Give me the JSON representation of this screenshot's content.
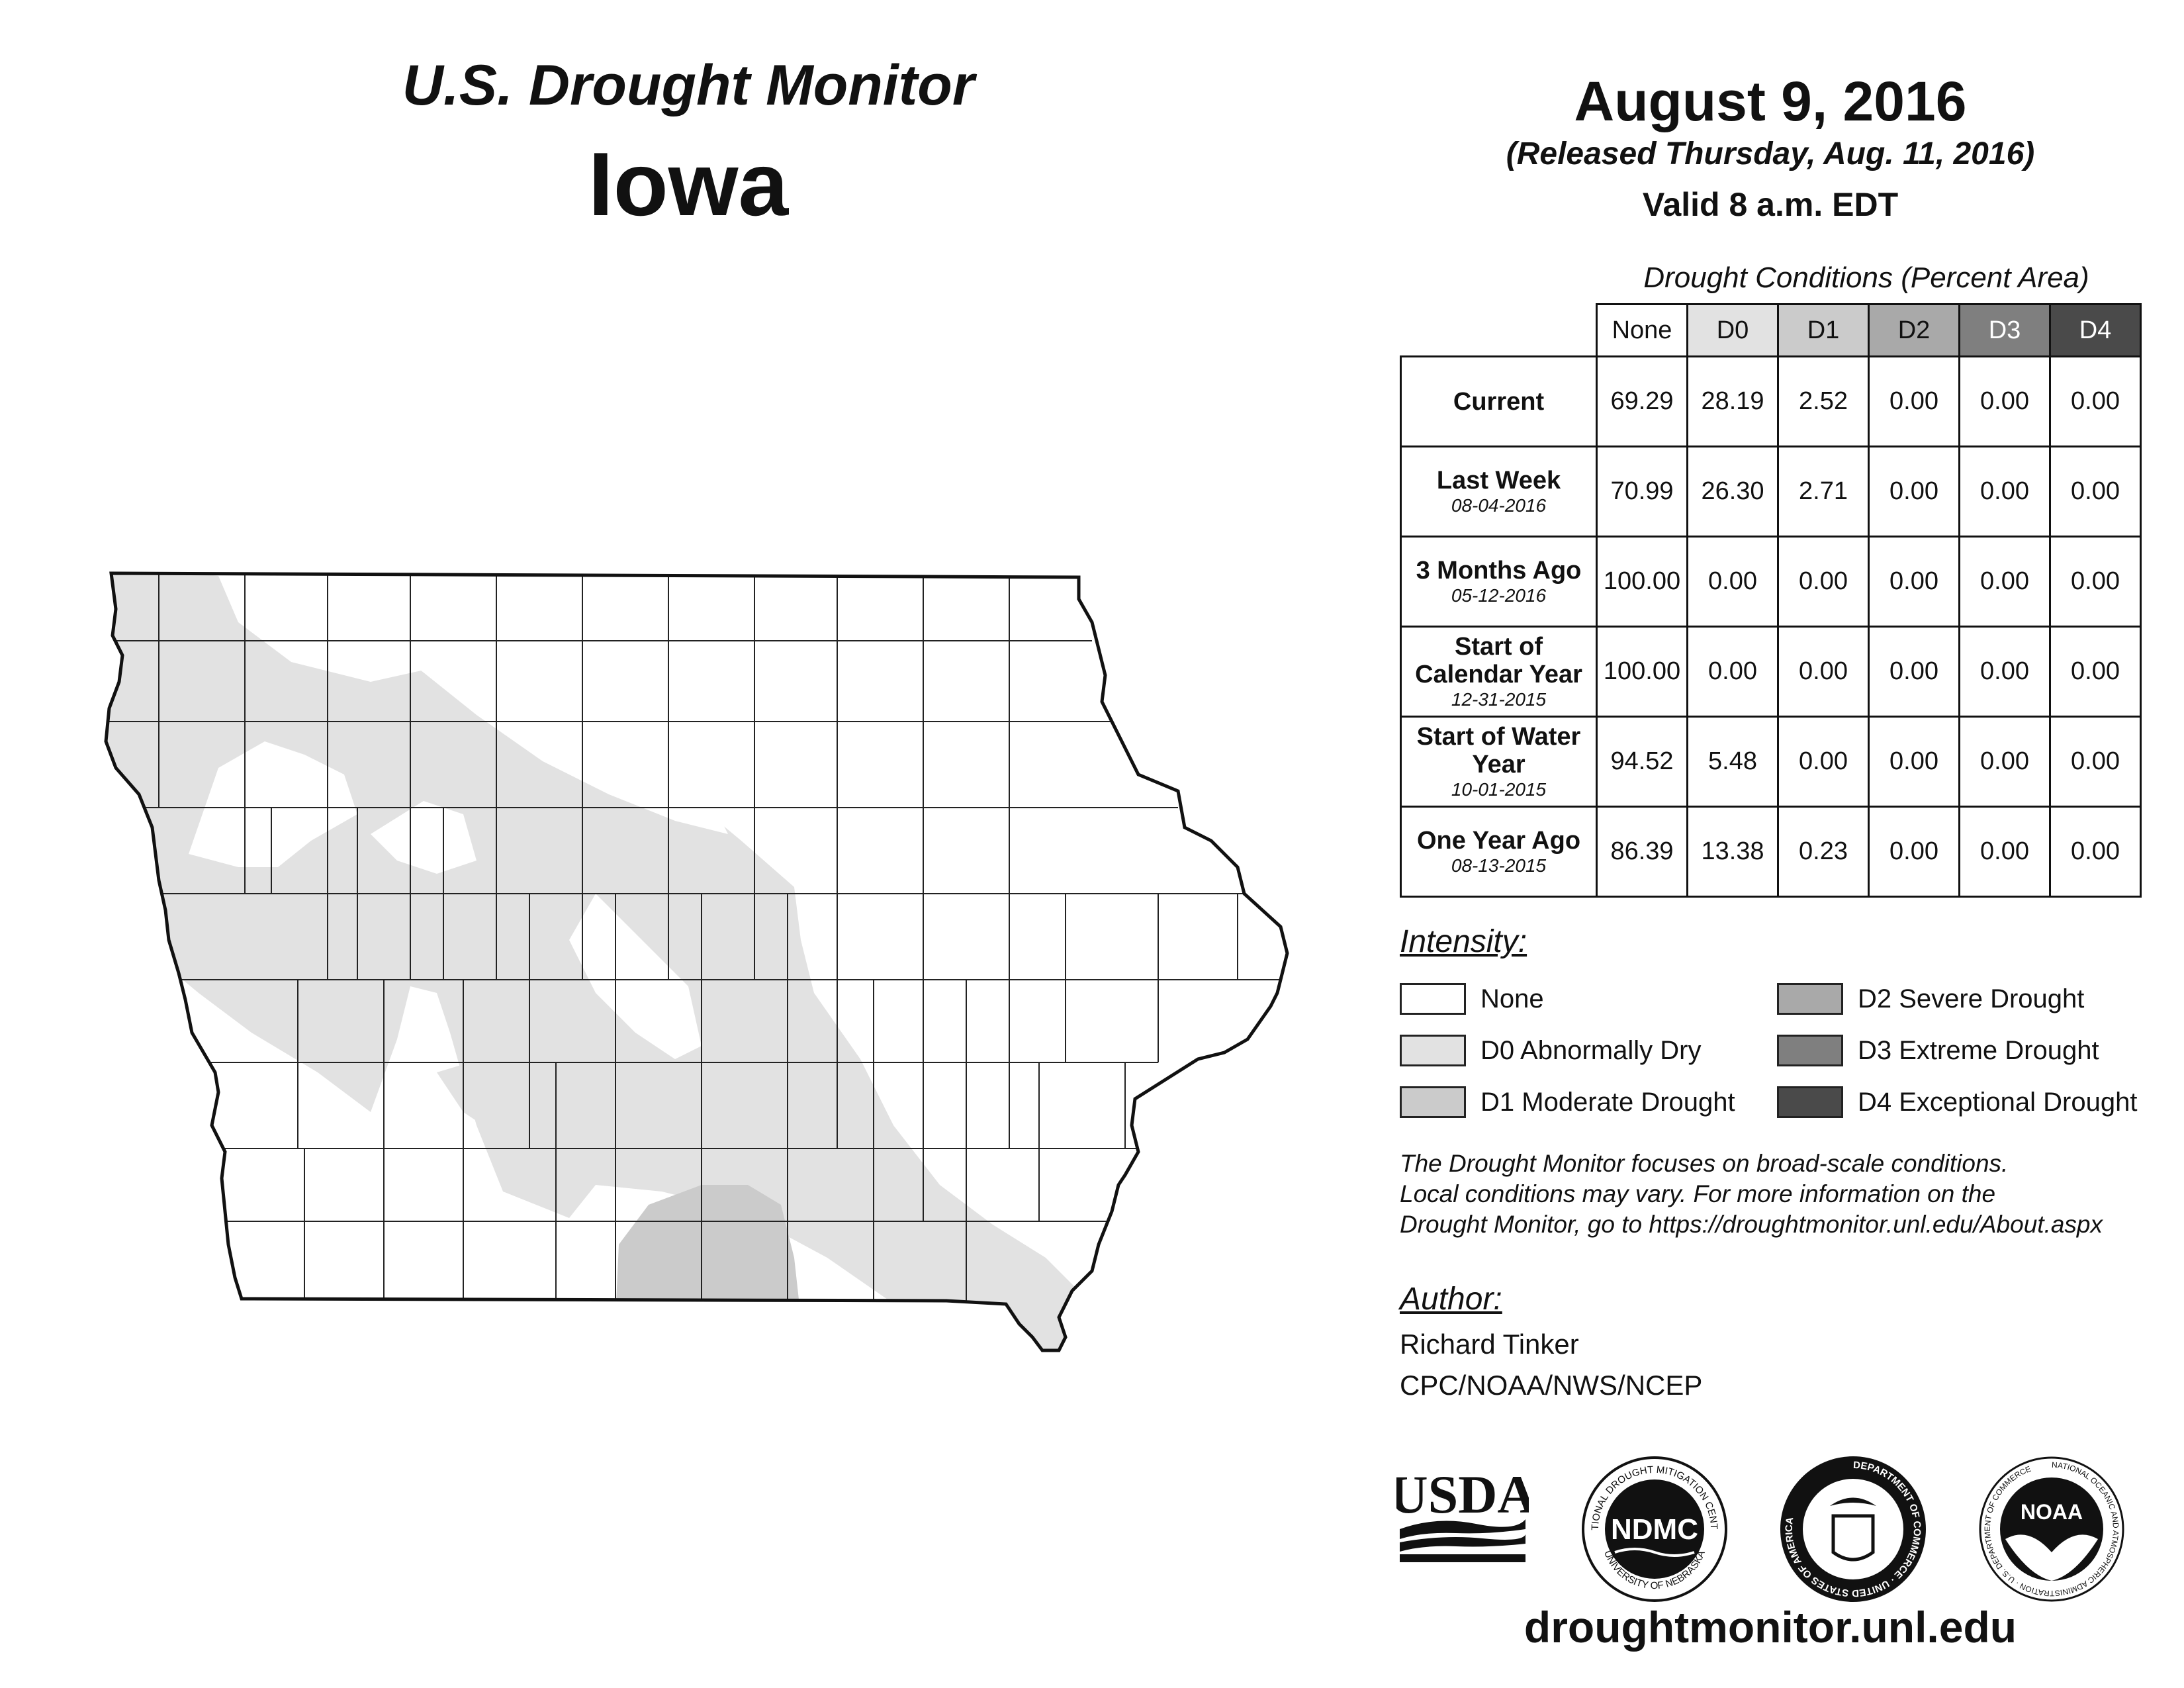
{
  "header": {
    "title": "U.S. Drought Monitor",
    "state": "Iowa",
    "date": "August 9, 2016",
    "released": "(Released Thursday, Aug. 11, 2016)",
    "valid": "Valid 8 a.m. EDT"
  },
  "table": {
    "caption": "Drought Conditions (Percent Area)",
    "columns": [
      "None",
      "D0",
      "D1",
      "D2",
      "D3",
      "D4"
    ],
    "column_colors": [
      "#ffffff",
      "#e2e2e2",
      "#cbcbcb",
      "#a9a9a9",
      "#7f7f7f",
      "#4a4a4a"
    ],
    "rows": [
      {
        "label": "Current",
        "date": "",
        "values": [
          "69.29",
          "28.19",
          "2.52",
          "0.00",
          "0.00",
          "0.00"
        ]
      },
      {
        "label": "Last Week",
        "date": "08-04-2016",
        "values": [
          "70.99",
          "26.30",
          "2.71",
          "0.00",
          "0.00",
          "0.00"
        ]
      },
      {
        "label": "3 Months Ago",
        "date": "05-12-2016",
        "values": [
          "100.00",
          "0.00",
          "0.00",
          "0.00",
          "0.00",
          "0.00"
        ]
      },
      {
        "label": "Start of Calendar Year",
        "date": "12-31-2015",
        "values": [
          "100.00",
          "0.00",
          "0.00",
          "0.00",
          "0.00",
          "0.00"
        ]
      },
      {
        "label": "Start of Water Year",
        "date": "10-01-2015",
        "values": [
          "94.52",
          "5.48",
          "0.00",
          "0.00",
          "0.00",
          "0.00"
        ]
      },
      {
        "label": "One Year Ago",
        "date": "08-13-2015",
        "values": [
          "86.39",
          "13.38",
          "0.23",
          "0.00",
          "0.00",
          "0.00"
        ]
      }
    ]
  },
  "legend": {
    "title": "Intensity:",
    "items": [
      {
        "label": "None",
        "color": "#ffffff"
      },
      {
        "label": "D0 Abnormally Dry",
        "color": "#e2e2e2"
      },
      {
        "label": "D1 Moderate Drought",
        "color": "#cbcbcb"
      },
      {
        "label": "D2 Severe Drought",
        "color": "#a9a9a9"
      },
      {
        "label": "D3 Extreme Drought",
        "color": "#7f7f7f"
      },
      {
        "label": "D4 Exceptional Drought",
        "color": "#4a4a4a"
      }
    ]
  },
  "note": {
    "line1": "The Drought Monitor focuses on broad-scale conditions.",
    "line2": "Local conditions may vary. For more information on the",
    "line3": "Drought Monitor, go to https://droughtmonitor.unl.edu/About.aspx"
  },
  "author": {
    "title": "Author:",
    "name": "Richard Tinker",
    "org": "CPC/NOAA/NWS/NCEP"
  },
  "logos": {
    "usda": "USDA",
    "ndmc": "NDMC",
    "ndmc_ring_top": "NATIONAL DROUGHT MITIGATION CENTER",
    "ndmc_ring_bottom": "UNIVERSITY OF NEBRASKA",
    "doc_ring": "DEPARTMENT OF COMMERCE · UNITED STATES OF AMERICA",
    "noaa": "NOAA",
    "noaa_ring": "NATIONAL OCEANIC AND ATMOSPHERIC ADMINISTRATION · U.S. DEPARTMENT OF COMMERCE"
  },
  "footer": {
    "url": "droughtmonitor.unl.edu"
  }
}
